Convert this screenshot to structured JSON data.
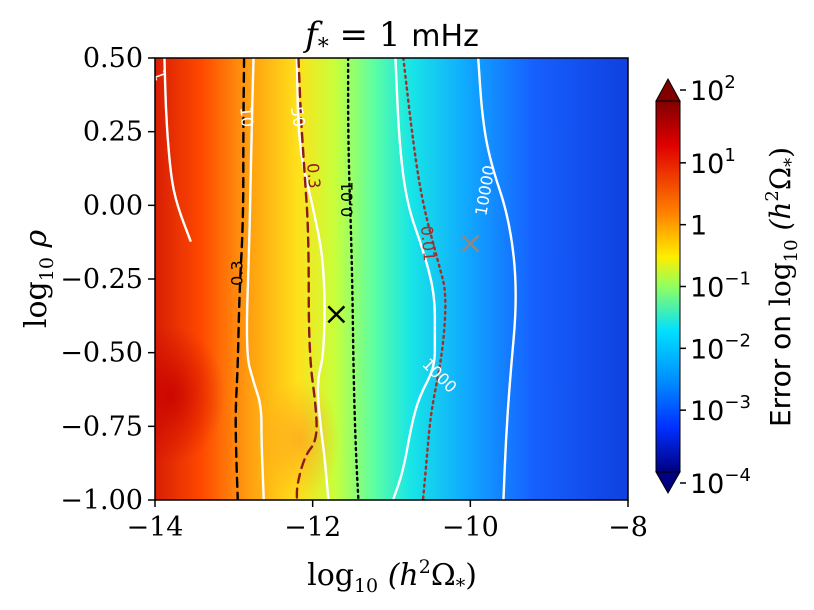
{
  "chart_data": {
    "type": "heatmap",
    "title": "f_* = 1 mHz",
    "title_parts": {
      "f": "f",
      "sub": "*",
      "rest": " = 1 ",
      "unit": "mHz"
    },
    "xlabel": "log10 (h²Ω*)",
    "xlabel_parts": {
      "log": "log",
      "sub": "10",
      "open": " (h",
      "sup": "2",
      "omega": "Ω",
      "omega_sub": "*",
      "close": ")"
    },
    "ylabel": "log10 ρ",
    "ylabel_parts": {
      "log": "log",
      "sub": "10",
      "rho": " ρ"
    },
    "xlim": [
      -14,
      -8
    ],
    "ylim": [
      -1.0,
      0.5
    ],
    "xticks": [
      -14,
      -12,
      -10,
      -8
    ],
    "xtick_labels": [
      "−14",
      "−12",
      "−10",
      "−8"
    ],
    "yticks": [
      0.5,
      0.25,
      0.0,
      -0.25,
      -0.5,
      -0.75,
      -1.0
    ],
    "ytick_labels": [
      "0.50",
      "0.25",
      "0.00",
      "−0.25",
      "−0.50",
      "−0.75",
      "−1.00"
    ],
    "colorbar": {
      "label": "Error on log10 (h²Ω*)",
      "label_parts": {
        "pre": "Error on ",
        "log": "log",
        "sub": "10",
        "open": " (h",
        "sup": "2",
        "omega": "Ω",
        "omega_sub": "*",
        "close": ")"
      },
      "scale": "log",
      "range_exponents": [
        -4,
        2
      ],
      "ticks": [
        {
          "exp": 2,
          "base": "10",
          "sup": "2"
        },
        {
          "exp": 1,
          "base": "10",
          "sup": "1"
        },
        {
          "exp": 0,
          "base": "1",
          "sup": ""
        },
        {
          "exp": -1,
          "base": "10",
          "sup": "−1"
        },
        {
          "exp": -2,
          "base": "10",
          "sup": "−2"
        },
        {
          "exp": -3,
          "base": "10",
          "sup": "−3"
        },
        {
          "exp": -4,
          "base": "10",
          "sup": "−4"
        }
      ],
      "extend": "both",
      "colormap": "jet"
    },
    "contours": [
      {
        "label": "1",
        "color": "#ffffff",
        "style": "solid",
        "label_at": [
          -13.95,
          0.44
        ],
        "label_rot": 70,
        "points": [
          [
            -13.88,
            0.5
          ],
          [
            -13.86,
            0.3
          ],
          [
            -13.8,
            0.1
          ],
          [
            -13.72,
            0.0
          ],
          [
            -13.55,
            -0.12
          ]
        ]
      },
      {
        "label": "10",
        "color": "#ffffff",
        "style": "solid",
        "label_at": [
          -12.85,
          0.3
        ],
        "label_rot": 85,
        "points": [
          [
            -12.75,
            0.5
          ],
          [
            -12.78,
            0.2
          ],
          [
            -12.8,
            -0.1
          ],
          [
            -12.85,
            -0.5
          ],
          [
            -12.75,
            -0.6
          ],
          [
            -12.65,
            -0.68
          ],
          [
            -12.65,
            -0.8
          ],
          [
            -12.62,
            -1.0
          ]
        ]
      },
      {
        "label": "50",
        "color": "#ffffff",
        "style": "solid",
        "label_at": [
          -12.2,
          0.3
        ],
        "label_rot": 80,
        "points": [
          [
            -12.2,
            0.5
          ],
          [
            -12.18,
            0.2
          ],
          [
            -12.0,
            0.0
          ],
          [
            -11.85,
            -0.2
          ],
          [
            -11.85,
            -0.5
          ],
          [
            -11.95,
            -0.6
          ],
          [
            -11.9,
            -0.75
          ],
          [
            -11.85,
            -0.85
          ],
          [
            -11.8,
            -1.0
          ]
        ]
      },
      {
        "label": "10000",
        "color": "#ffffff",
        "style": "solid",
        "label_at": [
          -9.8,
          0.05
        ],
        "label_rot": -80,
        "points": [
          [
            -9.9,
            0.5
          ],
          [
            -9.85,
            0.3
          ],
          [
            -9.75,
            0.15
          ],
          [
            -9.5,
            -0.05
          ],
          [
            -9.4,
            -0.3
          ],
          [
            -9.5,
            -0.6
          ],
          [
            -9.55,
            -0.8
          ],
          [
            -9.58,
            -1.0
          ]
        ]
      },
      {
        "label": "1000",
        "color": "#ffffff",
        "style": "solid",
        "label_at": [
          -10.4,
          -0.58
        ],
        "label_rot": 45,
        "points": [
          [
            -10.95,
            0.5
          ],
          [
            -10.9,
            0.2
          ],
          [
            -10.8,
            0.0
          ],
          [
            -10.6,
            -0.15
          ],
          [
            -10.45,
            -0.3
          ],
          [
            -10.45,
            -0.45
          ],
          [
            -10.45,
            -0.55
          ],
          [
            -10.65,
            -0.65
          ],
          [
            -10.75,
            -0.75
          ],
          [
            -10.85,
            -0.9
          ],
          [
            -10.98,
            -1.0
          ]
        ]
      },
      {
        "label": "0.3",
        "color": "#000000",
        "style": "dashed",
        "label_at": [
          -12.95,
          -0.23
        ],
        "label_rot": -90,
        "points": [
          [
            -12.87,
            0.5
          ],
          [
            -12.88,
            0.25
          ],
          [
            -12.88,
            -0.05
          ],
          [
            -12.93,
            -0.3
          ],
          [
            -12.95,
            -0.55
          ],
          [
            -12.98,
            -0.7
          ],
          [
            -12.97,
            -0.85
          ],
          [
            -12.95,
            -1.0
          ]
        ]
      },
      {
        "label": "0.3",
        "color": "#8b1a1a",
        "style": "dashed",
        "label_at": [
          -12.0,
          0.1
        ],
        "label_rot": 85,
        "points": [
          [
            -12.18,
            0.5
          ],
          [
            -12.15,
            0.3
          ],
          [
            -12.1,
            0.1
          ],
          [
            -12.05,
            -0.1
          ],
          [
            -12.05,
            -0.5
          ],
          [
            -11.95,
            -0.7
          ],
          [
            -11.95,
            -0.8
          ],
          [
            -12.1,
            -0.85
          ],
          [
            -12.2,
            -0.95
          ],
          [
            -12.2,
            -1.0
          ]
        ]
      },
      {
        "label": "0.01",
        "color": "#000000",
        "style": "dotted",
        "label_at": [
          -11.55,
          0.02
        ],
        "label_rot": -90,
        "points": [
          [
            -11.55,
            0.5
          ],
          [
            -11.55,
            0.2
          ],
          [
            -11.5,
            -0.2
          ],
          [
            -11.48,
            -0.6
          ],
          [
            -11.45,
            -0.85
          ],
          [
            -11.42,
            -1.0
          ]
        ]
      },
      {
        "label": "0.01",
        "color": "#a0302a",
        "style": "dotted",
        "label_at": [
          -10.55,
          -0.13
        ],
        "label_rot": 85,
        "points": [
          [
            -10.85,
            0.5
          ],
          [
            -10.72,
            0.2
          ],
          [
            -10.6,
            0.0
          ],
          [
            -10.4,
            -0.2
          ],
          [
            -10.3,
            -0.3
          ],
          [
            -10.35,
            -0.5
          ],
          [
            -10.5,
            -0.7
          ],
          [
            -10.55,
            -0.85
          ],
          [
            -10.6,
            -1.0
          ]
        ]
      }
    ],
    "markers": [
      {
        "x": -11.7,
        "y": -0.37,
        "symbol": "x",
        "color": "#000000"
      },
      {
        "x": -10.0,
        "y": -0.13,
        "symbol": "x",
        "color": "#8a8a8a"
      }
    ]
  }
}
